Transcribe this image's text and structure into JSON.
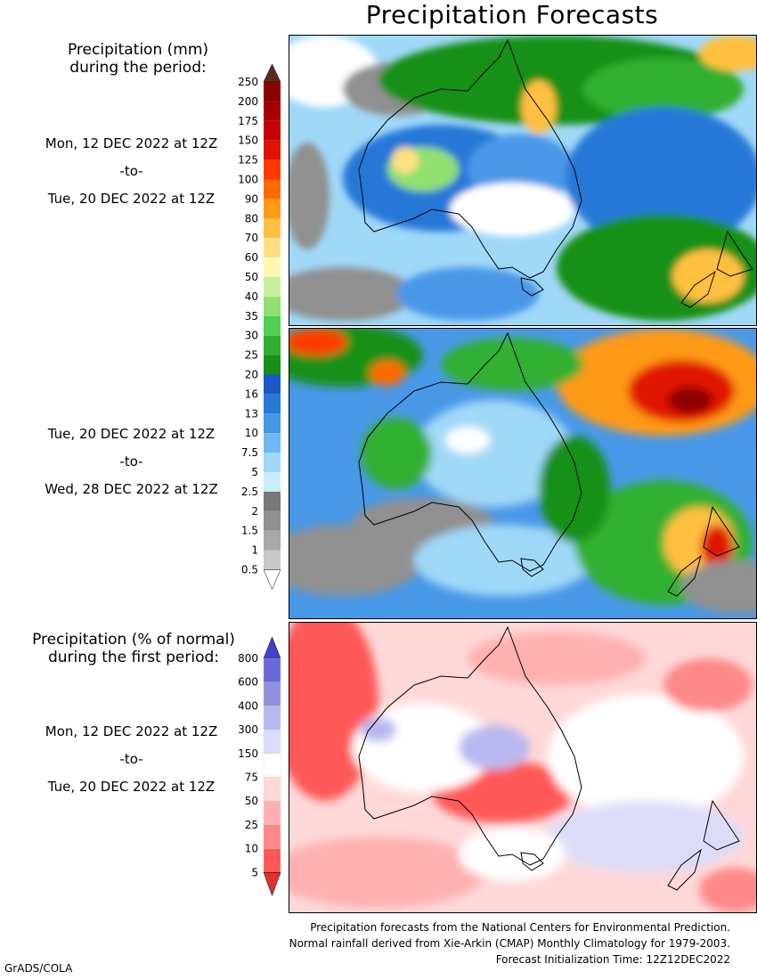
{
  "title": "Precipitation Forecasts",
  "precip_legend": {
    "heading_line1": "Precipitation (mm)",
    "heading_line2": "during the period:",
    "ticks": [
      "250",
      "200",
      "175",
      "150",
      "125",
      "100",
      "90",
      "80",
      "70",
      "60",
      "50",
      "40",
      "35",
      "30",
      "25",
      "20",
      "16",
      "13",
      "10",
      "7.5",
      "5",
      "2.5",
      "2",
      "1.5",
      "1",
      "0.5"
    ],
    "colors": [
      "#5a2a20",
      "#8b0000",
      "#a80000",
      "#c40000",
      "#e01400",
      "#ff3a00",
      "#ff6a00",
      "#ff9a18",
      "#ffc040",
      "#ffe080",
      "#fff8b0",
      "#c8f0a0",
      "#90e070",
      "#50d050",
      "#30b030",
      "#189018",
      "#1a5ac8",
      "#2878d8",
      "#4898e8",
      "#70b8f0",
      "#a0d8f8",
      "#c8f0f8",
      "#787878",
      "#909090",
      "#a8a8a8",
      "#c8c8c8"
    ]
  },
  "pct_legend": {
    "heading_line1": "Precipitation (% of normal)",
    "heading_line2": "during the first period:",
    "ticks": [
      "800",
      "600",
      "400",
      "300",
      "150",
      "75",
      "50",
      "25",
      "10",
      "5"
    ],
    "colors": [
      "#4040c8",
      "#6868d8",
      "#9090e0",
      "#b8b8f0",
      "#dcdcf8",
      "#ffffff",
      "#ffd8d8",
      "#ffb0b0",
      "#ff8888",
      "#ff5858",
      "#e03030"
    ]
  },
  "periods": [
    {
      "start": "Mon, 12 DEC 2022 at 12Z",
      "to": "-to-",
      "end": "Tue, 20 DEC 2022 at 12Z"
    },
    {
      "start": "Tue, 20 DEC 2022 at 12Z",
      "to": "-to-",
      "end": "Wed, 28 DEC 2022 at 12Z"
    },
    {
      "start": "Mon, 12 DEC 2022 at 12Z",
      "to": "-to-",
      "end": "Tue, 20 DEC 2022 at 12Z"
    }
  ],
  "footnotes": {
    "line1": "Precipitation forecasts from the National Centers for Environmental Prediction.",
    "line2": "Normal rainfall derived from Xie-Arkin (CMAP) Monthly Climatology for 1979-2003.",
    "line3": "Forecast Initialization Time: 12Z12DEC2022"
  },
  "credit": "GrADS/COLA"
}
